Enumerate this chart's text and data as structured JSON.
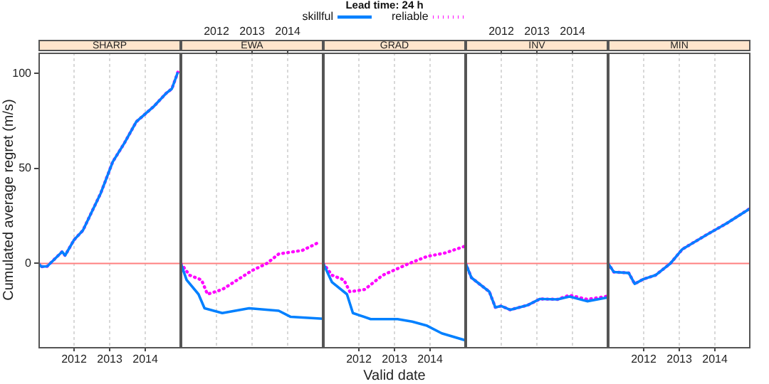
{
  "chart_data": [
    {
      "type": "line",
      "title": "SHARP",
      "legend_title": "Lead time: 24 h",
      "legend": "top",
      "ylabel": "Cumulated average regret (m/s)",
      "xlim": [
        "2011-01",
        "2015-01"
      ],
      "xticks": [
        "2012",
        "2013",
        "2014"
      ],
      "ylim": [
        -44,
        111
      ],
      "yticks": [
        0,
        50,
        100
      ],
      "grid": "x",
      "marker": "none",
      "ref_lines": [
        {
          "axis": "y",
          "value": 0,
          "color": "#ff8080"
        }
      ],
      "series": [
        {
          "name": "skillful",
          "color": "#0080ff",
          "line_style": "solid",
          "x": [
            "2011-01",
            "2011-02",
            "2011-04",
            "2011-09",
            "2011-10",
            "2012-01",
            "2012-04",
            "2012-10",
            "2013-02",
            "2013-06",
            "2013-10",
            "2014-04",
            "2014-08",
            "2014-10",
            "2014-12"
          ],
          "values": [
            0,
            -1.7,
            -1.5,
            6.2,
            4.2,
            12.4,
            17.4,
            37,
            53.5,
            63.4,
            74.6,
            82.8,
            89.5,
            92,
            100.7
          ]
        },
        {
          "name": "reliable",
          "color": "#ff00ff",
          "line_style": "dotted",
          "x": [
            "2011-01",
            "2011-02",
            "2011-04",
            "2011-09",
            "2011-10",
            "2012-01",
            "2012-04",
            "2012-10",
            "2013-02",
            "2013-06",
            "2013-10",
            "2014-04",
            "2014-08",
            "2014-10",
            "2014-12"
          ],
          "values": [
            0,
            -1.7,
            -1.5,
            6.2,
            4.2,
            12.4,
            17.4,
            37,
            53.5,
            63.4,
            74.6,
            82.8,
            89.5,
            92,
            100.7
          ]
        }
      ]
    },
    {
      "type": "line",
      "title": "EWA",
      "tick_labels": "x",
      "xlim": [
        "2011-01",
        "2015-01"
      ],
      "xticks": [
        "2012",
        "2013",
        "2014"
      ],
      "ylim": [
        -44,
        111
      ],
      "grid": "x",
      "marker": "none",
      "ref_lines": [
        {
          "axis": "y",
          "value": 0,
          "color": "#ff8080"
        }
      ],
      "series": [
        {
          "color": "#0080ff",
          "line_style": "solid",
          "x": [
            "2011-01",
            "2011-03",
            "2011-07",
            "2011-09",
            "2011-11",
            "2012-03",
            "2012-12",
            "2013-10",
            "2014-02",
            "2015-01"
          ],
          "values": [
            0,
            -8.7,
            -16.2,
            -23.6,
            -24.4,
            -26.1,
            -23.6,
            -24.9,
            -28.1,
            -29.1
          ]
        },
        {
          "color": "#ff00ff",
          "line_style": "dotted",
          "x": [
            "2011-01",
            "2011-04",
            "2011-08",
            "2011-10",
            "2012-03",
            "2013-01",
            "2013-06",
            "2013-10",
            "2014-06",
            "2014-11"
          ],
          "values": [
            0,
            -6.2,
            -8.7,
            -16.2,
            -13.7,
            -3.7,
            0,
            5,
            6.9,
            10.7
          ]
        }
      ]
    },
    {
      "type": "line",
      "title": "GRAD",
      "xlabel": "Valid date",
      "tick_labels": "x",
      "xlim": [
        "2011-01",
        "2015-01"
      ],
      "xticks": [
        "2012",
        "2013",
        "2014"
      ],
      "ylim": [
        -44,
        111
      ],
      "grid": "x",
      "marker": "none",
      "ref_lines": [
        {
          "axis": "y",
          "value": 0,
          "color": "#ff8080"
        }
      ],
      "series": [
        {
          "color": "#0080ff",
          "line_style": "solid",
          "x": [
            "2011-01",
            "2011-04",
            "2011-09",
            "2011-11",
            "2012-05",
            "2012-10",
            "2013-02",
            "2013-07",
            "2013-12",
            "2014-05",
            "2015-01"
          ],
          "values": [
            0,
            -9.9,
            -16.2,
            -26.1,
            -29.3,
            -29.3,
            -29.3,
            -30.6,
            -32.8,
            -36.8,
            -40.5
          ]
        },
        {
          "color": "#ff00ff",
          "line_style": "dotted",
          "x": [
            "2011-01",
            "2011-04",
            "2011-08",
            "2011-10",
            "2012-03",
            "2012-09",
            "2013-06",
            "2013-12",
            "2014-06",
            "2015-01"
          ],
          "values": [
            0,
            -6.2,
            -8.7,
            -14.9,
            -13.7,
            -6.2,
            0,
            3.7,
            5.5,
            9.2
          ]
        }
      ]
    },
    {
      "type": "line",
      "title": "INV",
      "tick_labels": "x",
      "xlim": [
        "2011-01",
        "2015-01"
      ],
      "xticks": [
        "2012",
        "2013",
        "2014"
      ],
      "ylim": [
        -44,
        111
      ],
      "grid": "x",
      "marker": "none",
      "ref_lines": [
        {
          "axis": "y",
          "value": 0,
          "color": "#ff8080"
        }
      ],
      "series": [
        {
          "color": "#0080ff",
          "line_style": "solid",
          "x": [
            "2011-01",
            "2011-03",
            "2011-09",
            "2011-11",
            "2012-01",
            "2012-04",
            "2012-10",
            "2013-02",
            "2013-08",
            "2013-12",
            "2014-06",
            "2015-01"
          ],
          "values": [
            0,
            -7.5,
            -14.9,
            -23.1,
            -22.4,
            -24.4,
            -21.9,
            -18.7,
            -18.9,
            -17.4,
            -19.9,
            -17.9
          ]
        },
        {
          "color": "#ff00ff",
          "line_style": "dotted",
          "x": [
            "2011-01",
            "2011-03",
            "2011-09",
            "2011-11",
            "2012-01",
            "2012-04",
            "2012-10",
            "2013-02",
            "2013-08",
            "2013-12",
            "2014-06",
            "2015-01"
          ],
          "values": [
            0,
            -7.5,
            -14.9,
            -23.1,
            -22.4,
            -24.4,
            -21.9,
            -18.7,
            -18.9,
            -16.7,
            -18.9,
            -17.2
          ]
        }
      ]
    },
    {
      "type": "line",
      "title": "MIN",
      "tick_labels": "x",
      "xlim": [
        "2011-01",
        "2015-01"
      ],
      "xticks": [
        "2012",
        "2013",
        "2014"
      ],
      "ylim": [
        -44,
        111
      ],
      "grid": "x",
      "marker": "none",
      "ref_lines": [
        {
          "axis": "y",
          "value": 0,
          "color": "#ff8080"
        }
      ],
      "series": [
        {
          "color": "#0080ff",
          "line_style": "solid",
          "x": [
            "2011-01",
            "2011-03",
            "2011-08",
            "2011-10",
            "2012-01",
            "2012-05",
            "2012-10",
            "2013-02",
            "2013-10",
            "2014-05",
            "2015-01"
          ],
          "values": [
            0,
            -4.5,
            -5,
            -10.7,
            -8.2,
            -6.2,
            0,
            7.5,
            14.9,
            21.1,
            29.1
          ]
        },
        {
          "color": "#ff00ff",
          "line_style": "dotted",
          "x": [
            "2011-01",
            "2011-03",
            "2011-08",
            "2011-10",
            "2012-01",
            "2012-05",
            "2012-10",
            "2013-02",
            "2013-10",
            "2014-05",
            "2015-01"
          ],
          "values": [
            0,
            -4.5,
            -5,
            -10.7,
            -8.2,
            -6.2,
            0,
            7.5,
            14.9,
            21.1,
            29.1
          ]
        }
      ]
    }
  ]
}
